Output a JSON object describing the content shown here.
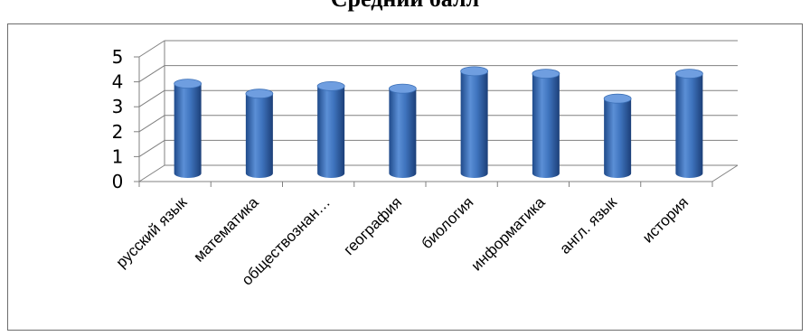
{
  "chart_data": {
    "type": "bar",
    "style": "3d-cylinder",
    "title": "Средний балл",
    "categories": [
      "русский язык",
      "математика",
      "обществознан…",
      "география",
      "биология",
      "информатика",
      "англ. язык",
      "история"
    ],
    "values": [
      3.6,
      3.2,
      3.5,
      3.4,
      4.1,
      4.0,
      3.0,
      4.0
    ],
    "yticks": [
      "0",
      "1",
      "2",
      "3",
      "4",
      "5"
    ],
    "ylim": [
      0,
      5
    ],
    "xlabel": "",
    "ylabel": "",
    "grid": true,
    "legend": "none",
    "bar_color": "#3b6fb6"
  }
}
